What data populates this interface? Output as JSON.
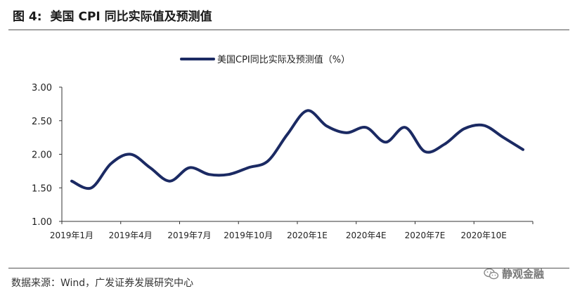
{
  "figure": {
    "label": "图 4:",
    "title": "美国 CPI 同比实际值及预测值"
  },
  "source": "数据来源：Wind，广发证券发展研究中心",
  "watermark": "静观金融",
  "icons": {
    "watermark": "wechat-icon"
  },
  "colors": {
    "line": "#1b2a63",
    "axis": "#333333"
  },
  "chart_data": {
    "type": "line",
    "legend": "美国CPI同比实际及预测值（%）",
    "legend_position": "top-center",
    "grid": false,
    "ylim": [
      1.0,
      3.0
    ],
    "yticks": [
      "3.00",
      "2.50",
      "2.00",
      "1.50",
      "1.00"
    ],
    "xticks": [
      "2019年1月",
      "2019年4月",
      "2019年7月",
      "2019年10月",
      "2020年1E",
      "2020年4E",
      "2020年7E",
      "2020年10E"
    ],
    "x": [
      "2019-01",
      "2019-02",
      "2019-03",
      "2019-04",
      "2019-05",
      "2019-06",
      "2019-07",
      "2019-08",
      "2019-09",
      "2019-10",
      "2019-11",
      "2019-12",
      "2020-01",
      "2020-02",
      "2020-03",
      "2020-04",
      "2020-05",
      "2020-06",
      "2020-07",
      "2020-08",
      "2020-09",
      "2020-10",
      "2020-11",
      "2020-12"
    ],
    "series": [
      {
        "name": "美国CPI同比实际及预测值（%）",
        "values": [
          1.6,
          1.5,
          1.86,
          2.0,
          1.8,
          1.6,
          1.8,
          1.7,
          1.7,
          1.8,
          1.9,
          2.3,
          2.65,
          2.42,
          2.32,
          2.4,
          2.18,
          2.4,
          2.04,
          2.15,
          2.38,
          2.43,
          2.25,
          2.07
        ]
      }
    ]
  }
}
